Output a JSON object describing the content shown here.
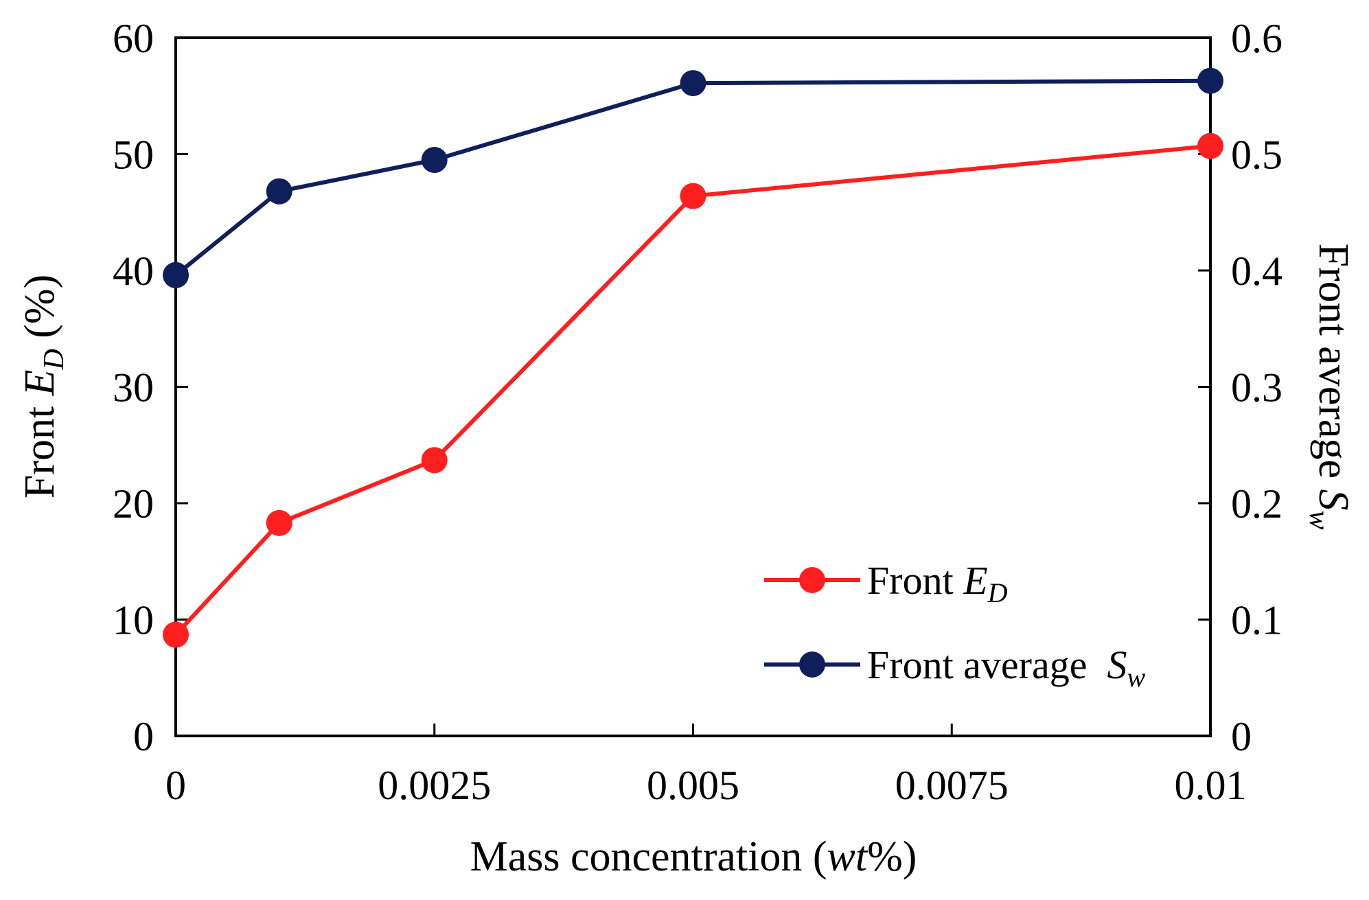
{
  "chart_data": {
    "type": "line",
    "x_unit_note": "Mass concentration (wt%)",
    "x_ticks": [
      "0",
      "0.0025",
      "0.005",
      "0.0075",
      "0.01"
    ],
    "x_tick_values": [
      0,
      0.0025,
      0.005,
      0.0075,
      0.01
    ],
    "xlim": [
      0,
      0.01
    ],
    "xlabel": {
      "prefix": "Mass concentration (",
      "italic": "wt",
      "suffix": "%)"
    },
    "y_left": {
      "ticks": [
        "0",
        "10",
        "20",
        "30",
        "40",
        "50",
        "60"
      ],
      "tick_values": [
        0,
        10,
        20,
        30,
        40,
        50,
        60
      ],
      "ylim": [
        0,
        60
      ],
      "label": {
        "prefix": "Front ",
        "italic": "E",
        "subscript": "D",
        "suffix": " (%)"
      }
    },
    "y_right": {
      "ticks": [
        "0",
        "0.1",
        "0.2",
        "0.3",
        "0.4",
        "0.5",
        "0.6"
      ],
      "tick_values": [
        0,
        0.1,
        0.2,
        0.3,
        0.4,
        0.5,
        0.6
      ],
      "ylim": [
        0,
        0.6
      ],
      "label": {
        "prefix": "Front average ",
        "italic": "S",
        "subscript": "w"
      }
    },
    "series": [
      {
        "name": "Front ED",
        "axis": "left",
        "color": "#ff1f1f",
        "x": [
          0,
          0.001,
          0.0025,
          0.005,
          0.01
        ],
        "values": [
          8.7,
          18.3,
          23.7,
          46.4,
          50.7
        ]
      },
      {
        "name": "Front average Sw",
        "axis": "right",
        "color": "#0f1f5c",
        "x": [
          0,
          0.001,
          0.0025,
          0.005,
          0.01
        ],
        "values": [
          0.396,
          0.468,
          0.495,
          0.561,
          0.563
        ]
      }
    ],
    "legend": {
      "position": "bottom-right",
      "entries": [
        {
          "prefix": "Front ",
          "italic": "E",
          "subscript": "D"
        },
        {
          "prefix": "Front average  ",
          "italic": "S",
          "subscript": "w"
        }
      ]
    }
  }
}
